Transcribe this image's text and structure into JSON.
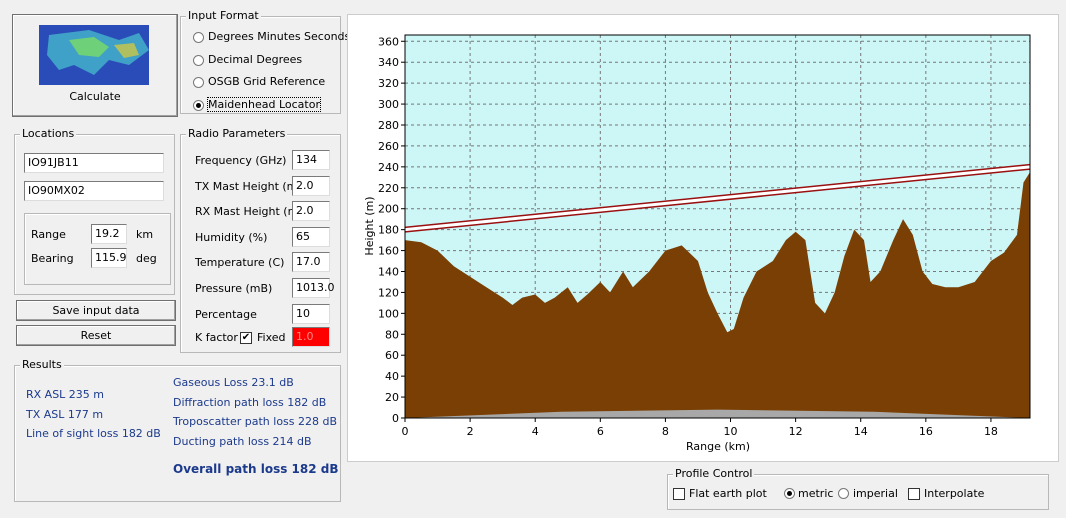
{
  "calculate": {
    "label": "Calculate"
  },
  "input_format": {
    "title": "Input Format",
    "options": [
      "Degrees Minutes Seconds",
      "Decimal Degrees",
      "OSGB Grid Reference",
      "Maidenhead Locator"
    ],
    "selected": 3
  },
  "locations": {
    "title": "Locations",
    "rx": "IO91JB11",
    "tx": "IO90MX02",
    "range_label": "Range",
    "range": "19.2",
    "range_unit": "km",
    "bearing_label": "Bearing",
    "bearing": "115.9",
    "bearing_unit": "deg"
  },
  "buttons": [
    "Save input data",
    "Reset"
  ],
  "radio_parameters": {
    "title": "Radio Parameters",
    "rows": [
      [
        "Frequency (GHz)",
        "134"
      ],
      [
        "TX Mast Height (m)",
        "2.0"
      ],
      [
        "RX Mast Height (m)",
        "2.0"
      ],
      [
        "Humidity (%)",
        "65"
      ],
      [
        "Temperature (C)",
        "17.0"
      ],
      [
        "Pressure (mB)",
        "1013.0"
      ],
      [
        "Percentage",
        "10"
      ]
    ],
    "k_factor_label": "K factor",
    "fixed_label": "Fixed",
    "fixed_checked": true,
    "k_factor": "1.0"
  },
  "results": {
    "title": "Results",
    "left": [
      "RX ASL 235 m",
      "TX ASL 177 m",
      "Line of sight loss 182 dB"
    ],
    "right": [
      "Gaseous Loss 23.1 dB",
      "Diffraction path loss 182 dB",
      "Troposcatter path loss 228 dB",
      "Ducting path loss 214 dB"
    ],
    "overall": "Overall path loss 182 dB"
  },
  "profile_control": {
    "title": "Profile Control",
    "flat_earth": "Flat earth plot",
    "flat_earth_checked": false,
    "units": [
      "metric",
      "imperial"
    ],
    "units_selected": 0,
    "interpolate": "Interpolate",
    "interpolate_checked": false
  },
  "chart_data": {
    "type": "area",
    "x_label": "Range (km)",
    "y_label": "Height (m)",
    "xlim": [
      0,
      19.2
    ],
    "ylim": [
      0,
      366
    ],
    "xticks": [
      0,
      2,
      4,
      6,
      8,
      10,
      12,
      14,
      16,
      18
    ],
    "yticks": [
      0,
      20,
      40,
      60,
      80,
      100,
      120,
      140,
      160,
      180,
      200,
      220,
      240,
      260,
      280,
      300,
      320,
      340,
      360
    ],
    "grid": true,
    "series": [
      {
        "type": "area",
        "color": "#7a3f04",
        "x": [
          0,
          0.5,
          1,
          1.5,
          2,
          2.5,
          3,
          3.3,
          3.6,
          4,
          4.3,
          4.6,
          5,
          5.3,
          5.6,
          6,
          6.3,
          6.7,
          7,
          7.5,
          8,
          8.5,
          9,
          9.3,
          9.6,
          9.9,
          10.1,
          10.4,
          10.8,
          11.3,
          11.7,
          12,
          12.3,
          12.6,
          12.9,
          13.2,
          13.5,
          13.8,
          14.1,
          14.3,
          14.6,
          15,
          15.3,
          15.6,
          15.9,
          16.2,
          16.6,
          17,
          17.5,
          18,
          18.4,
          18.8,
          19,
          19.2
        ],
        "values": [
          170,
          168,
          160,
          145,
          135,
          125,
          115,
          108,
          115,
          118,
          110,
          115,
          125,
          110,
          118,
          130,
          120,
          140,
          125,
          140,
          160,
          165,
          150,
          120,
          100,
          82,
          85,
          115,
          140,
          150,
          170,
          178,
          170,
          110,
          100,
          120,
          155,
          180,
          170,
          130,
          140,
          170,
          190,
          175,
          140,
          128,
          125,
          125,
          130,
          150,
          158,
          175,
          225,
          235
        ]
      },
      {
        "type": "area",
        "color": "#a8a8a8",
        "x": [
          0,
          4.8,
          9.6,
          14.4,
          19.2
        ],
        "values": [
          0,
          6,
          8,
          6,
          0
        ]
      },
      {
        "type": "line",
        "color": "#9a1010",
        "x": [
          0,
          19.2
        ],
        "values": [
          180,
          240
        ]
      }
    ]
  }
}
